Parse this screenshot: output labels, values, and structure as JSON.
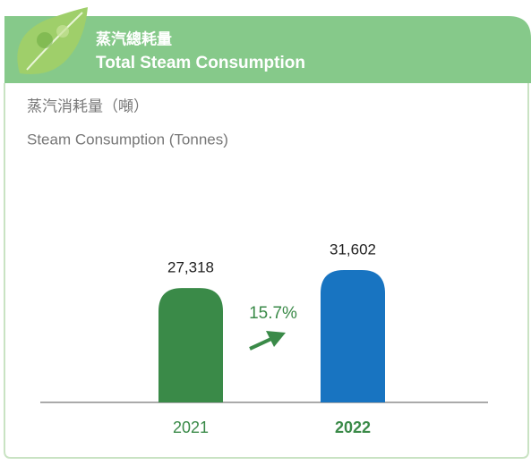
{
  "chart_data": {
    "type": "bar",
    "title": "蒸汽總耗量",
    "subtitle": "Total Steam Consumption",
    "y_label": [
      "蒸汽消耗量（噸）",
      "Steam Consumption (Tonnes)"
    ],
    "categories": [
      "2021",
      "2022"
    ],
    "values": [
      27318,
      31602
    ],
    "value_labels": [
      "27,318",
      "31,602"
    ],
    "colors": [
      "#3a8a48",
      "#1874c1"
    ],
    "annotation": "15.7%"
  }
}
